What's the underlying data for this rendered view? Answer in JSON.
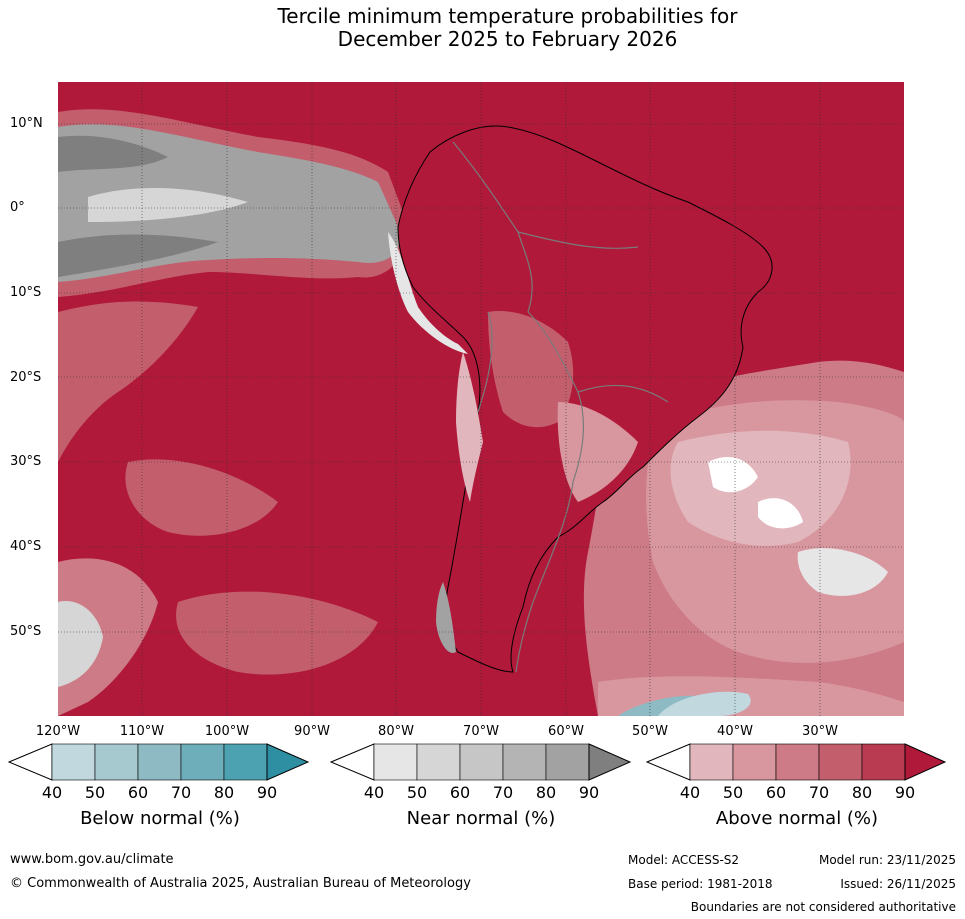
{
  "title": {
    "line1": "Tercile minimum temperature probabilities for",
    "line2": "December 2025 to February 2026"
  },
  "map": {
    "lat_labels": [
      "10°N",
      "0°",
      "10°S",
      "20°S",
      "30°S",
      "40°S",
      "50°S"
    ],
    "lon_labels": [
      "120°W",
      "110°W",
      "100°W",
      "90°W",
      "80°W",
      "70°W",
      "60°W",
      "50°W",
      "40°W",
      "30°W"
    ]
  },
  "colorbars": [
    {
      "title": "Below normal (%)",
      "ticks": [
        "40",
        "50",
        "60",
        "70",
        "80",
        "90"
      ],
      "colors": [
        "#ffffff",
        "#c0d8de",
        "#a6c8cf",
        "#8dbac3",
        "#6eaebb",
        "#4da2b2",
        "#2e8fa3"
      ]
    },
    {
      "title": "Near normal (%)",
      "ticks": [
        "40",
        "50",
        "60",
        "70",
        "80",
        "90"
      ],
      "colors": [
        "#ffffff",
        "#e6e6e6",
        "#d6d6d6",
        "#c6c6c6",
        "#b4b4b4",
        "#a2a2a2",
        "#7f7f7f"
      ]
    },
    {
      "title": "Above normal (%)",
      "ticks": [
        "40",
        "50",
        "60",
        "70",
        "80",
        "90"
      ],
      "colors": [
        "#ffffff",
        "#e2b6bd",
        "#d8979f",
        "#cd7b86",
        "#c35e6d",
        "#b83b52",
        "#b0193a"
      ]
    }
  ],
  "footer": {
    "url": "www.bom.gov.au/climate",
    "copyright": "© Commonwealth of Australia 2025, Australian Bureau of Meteorology",
    "model": "Model: ACCESS-S2",
    "model_run": "Model run: 23/11/2025",
    "base_period": "Base period: 1981-2018",
    "issued": "Issued: 26/11/2025",
    "disclaimer": "Boundaries are not considered authoritative"
  }
}
